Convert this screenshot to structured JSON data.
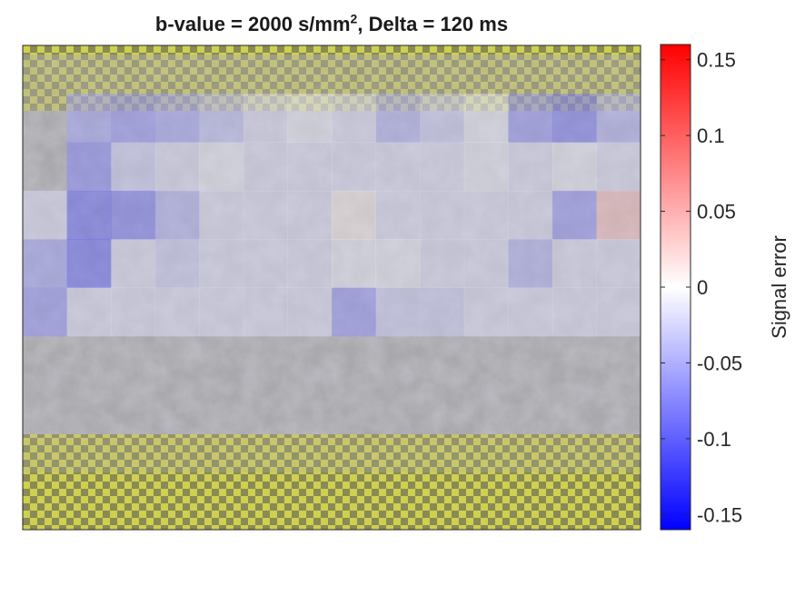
{
  "chart_data": {
    "type": "heatmap",
    "title_prefix": "b-value = 2000 s/mm",
    "title_sup": "2",
    "title_suffix": ", Delta = 120 ms",
    "colorbar": {
      "label": "Signal error",
      "range": [
        -0.16,
        0.16
      ],
      "ticks": [
        0.15,
        0.1,
        0.05,
        0,
        -0.05,
        -0.1,
        -0.15
      ],
      "tick_labels": [
        "0.15",
        "0.1",
        "0.05",
        "0",
        "-0.05",
        "-0.1",
        "-0.15"
      ],
      "colormap": [
        "#0000ff",
        "#ffffff",
        "#ff0000"
      ]
    },
    "mask_color": "#e8e84a",
    "grid": {
      "rows": 10,
      "cols": 14,
      "values": [
        [
          null,
          null,
          null,
          null,
          null,
          null,
          null,
          null,
          null,
          null,
          null,
          null,
          null,
          null
        ],
        [
          null,
          -0.06,
          -0.07,
          -0.06,
          -0.04,
          -0.02,
          -0.01,
          -0.02,
          -0.05,
          -0.03,
          -0.01,
          -0.07,
          -0.09,
          -0.05
        ],
        [
          null,
          -0.08,
          -0.03,
          -0.02,
          -0.01,
          -0.02,
          -0.02,
          -0.02,
          -0.02,
          -0.02,
          -0.01,
          -0.02,
          -0.01,
          -0.02
        ],
        [
          -0.02,
          -0.1,
          -0.09,
          -0.05,
          -0.02,
          -0.02,
          -0.02,
          0.01,
          -0.02,
          -0.02,
          -0.02,
          -0.02,
          -0.07,
          0.04
        ],
        [
          -0.06,
          -0.1,
          -0.02,
          -0.03,
          -0.02,
          -0.02,
          -0.02,
          -0.01,
          -0.01,
          -0.02,
          -0.02,
          -0.05,
          -0.02,
          -0.02
        ],
        [
          -0.07,
          -0.02,
          -0.02,
          -0.02,
          -0.02,
          -0.02,
          -0.02,
          -0.07,
          -0.03,
          -0.03,
          -0.02,
          -0.02,
          -0.02,
          -0.02
        ],
        [
          null,
          null,
          null,
          null,
          null,
          null,
          null,
          null,
          null,
          null,
          null,
          null,
          null,
          null
        ],
        [
          null,
          null,
          null,
          null,
          null,
          null,
          null,
          null,
          null,
          null,
          null,
          null,
          null,
          null
        ],
        [
          null,
          null,
          null,
          null,
          null,
          null,
          null,
          null,
          null,
          null,
          null,
          null,
          null,
          null
        ],
        [
          null,
          null,
          null,
          null,
          null,
          null,
          null,
          null,
          null,
          null,
          null,
          null,
          null,
          null
        ]
      ]
    }
  }
}
